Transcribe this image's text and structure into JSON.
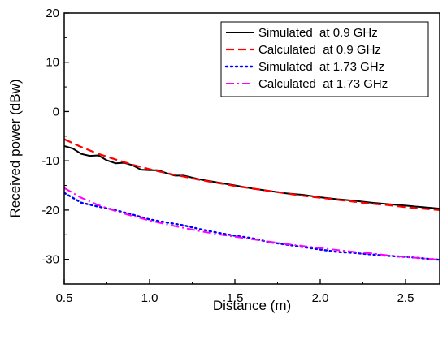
{
  "chart_data": {
    "type": "line",
    "title": "",
    "xlabel": "Distance (m)",
    "ylabel": "Received power (dBw)",
    "xlim": [
      0.5,
      2.7
    ],
    "ylim": [
      -35,
      20
    ],
    "xticks": [
      0.5,
      1.0,
      1.5,
      2.0,
      2.5
    ],
    "xtick_labels": [
      "0.5",
      "1.0",
      "1.5",
      "2.0",
      "2.5"
    ],
    "yticks": [
      -30,
      -20,
      -10,
      0,
      10,
      20
    ],
    "ytick_labels": [
      "-30",
      "-20",
      "-10",
      "0",
      "10",
      "20"
    ],
    "grid": false,
    "legend_position": "top-right",
    "series": [
      {
        "name": "Simulated  at 0.9 GHz",
        "color": "#000000",
        "dash": "solid",
        "x": [
          0.5,
          0.55,
          0.6,
          0.65,
          0.7,
          0.75,
          0.8,
          0.85,
          0.9,
          0.95,
          1.0,
          1.05,
          1.1,
          1.15,
          1.2,
          1.3,
          1.4,
          1.5,
          1.6,
          1.7,
          1.8,
          1.9,
          2.0,
          2.1,
          2.2,
          2.3,
          2.4,
          2.5,
          2.6,
          2.7
        ],
        "y": [
          -7.0,
          -7.5,
          -8.6,
          -9.0,
          -8.9,
          -9.9,
          -10.5,
          -10.4,
          -10.9,
          -11.8,
          -11.9,
          -11.9,
          -12.5,
          -13.0,
          -13.0,
          -13.8,
          -14.4,
          -15.0,
          -15.6,
          -16.1,
          -16.6,
          -16.9,
          -17.4,
          -17.8,
          -18.1,
          -18.5,
          -18.8,
          -19.1,
          -19.4,
          -19.7
        ]
      },
      {
        "name": "Calculated  at 0.9 GHz",
        "color": "#ff0000",
        "dash": "dashed",
        "x": [
          0.5,
          0.6,
          0.7,
          0.8,
          0.9,
          1.0,
          1.1,
          1.2,
          1.3,
          1.4,
          1.5,
          1.6,
          1.7,
          1.8,
          1.9,
          2.0,
          2.1,
          2.2,
          2.3,
          2.4,
          2.5,
          2.6,
          2.7
        ],
        "y": [
          -5.6,
          -7.2,
          -8.6,
          -9.7,
          -10.8,
          -11.7,
          -12.5,
          -13.2,
          -13.9,
          -14.5,
          -15.1,
          -15.6,
          -16.1,
          -16.6,
          -17.1,
          -17.5,
          -17.9,
          -18.3,
          -18.7,
          -19.0,
          -19.4,
          -19.7,
          -20.0
        ]
      },
      {
        "name": "Simulated  at 1.73 GHz",
        "color": "#0000ff",
        "dash": "dotted",
        "x": [
          0.5,
          0.6,
          0.7,
          0.8,
          0.9,
          1.0,
          1.1,
          1.2,
          1.3,
          1.4,
          1.5,
          1.6,
          1.7,
          1.8,
          1.9,
          2.0,
          2.1,
          2.2,
          2.3,
          2.4,
          2.5,
          2.6,
          2.7
        ],
        "y": [
          -16.5,
          -18.5,
          -19.3,
          -20.0,
          -20.9,
          -21.9,
          -22.5,
          -23.1,
          -23.9,
          -24.6,
          -25.2,
          -25.7,
          -26.5,
          -27.0,
          -27.5,
          -28.0,
          -28.5,
          -28.7,
          -29.0,
          -29.3,
          -29.5,
          -29.8,
          -30.1
        ]
      },
      {
        "name": "Calculated  at 1.73 GHz",
        "color": "#ff00ff",
        "dash": "dashdot",
        "x": [
          0.5,
          0.6,
          0.7,
          0.8,
          0.9,
          1.0,
          1.1,
          1.2,
          1.3,
          1.4,
          1.5,
          1.6,
          1.7,
          1.8,
          1.9,
          2.0,
          2.1,
          2.2,
          2.3,
          2.4,
          2.5,
          2.6,
          2.7
        ],
        "y": [
          -15.5,
          -17.5,
          -19.0,
          -20.2,
          -21.2,
          -22.1,
          -22.9,
          -23.6,
          -24.3,
          -24.9,
          -25.4,
          -25.9,
          -26.4,
          -26.9,
          -27.3,
          -27.7,
          -28.1,
          -28.5,
          -28.8,
          -29.2,
          -29.5,
          -29.8,
          -30.1
        ]
      }
    ]
  }
}
